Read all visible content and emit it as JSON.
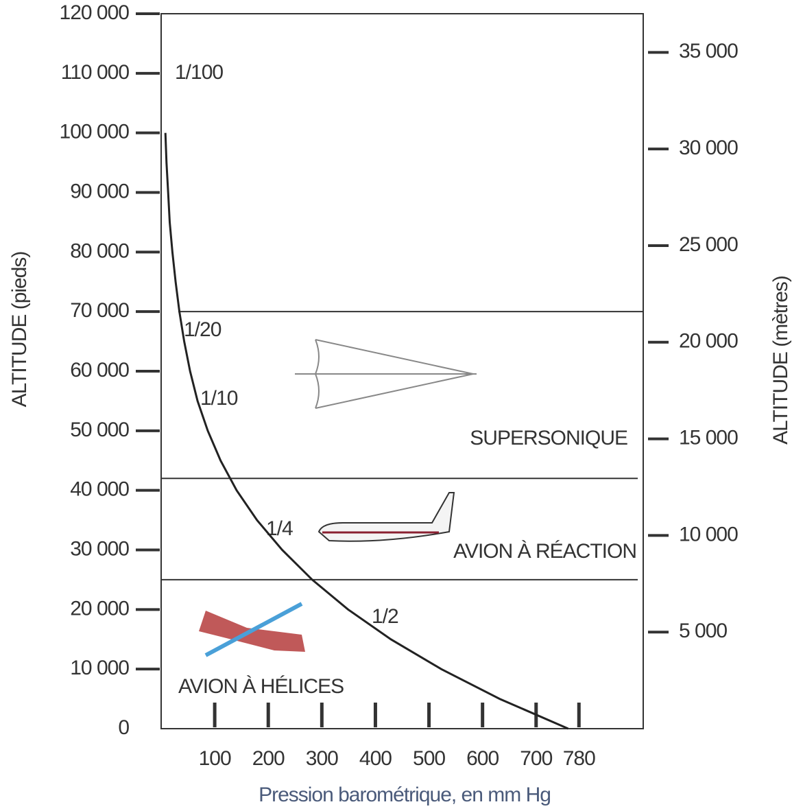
{
  "chart_data": {
    "type": "line",
    "xlabel": "Pression barométrique, en mm Hg",
    "ylabel": "ALTITUDE (pieds)",
    "y2label": "ALTITUDE (mètres)",
    "xlim": [
      0,
      900
    ],
    "xticks": [
      100,
      200,
      300,
      400,
      500,
      600,
      700,
      780
    ],
    "ylim": [
      0,
      120000
    ],
    "yticks": [
      {
        "value": 0,
        "label": "0"
      },
      {
        "value": 10000,
        "label": "10 000"
      },
      {
        "value": 20000,
        "label": "20 000"
      },
      {
        "value": 30000,
        "label": "30 000"
      },
      {
        "value": 40000,
        "label": "40 000"
      },
      {
        "value": 50000,
        "label": "50 000"
      },
      {
        "value": 60000,
        "label": "60 000"
      },
      {
        "value": 70000,
        "label": "70 000"
      },
      {
        "value": 80000,
        "label": "80 000"
      },
      {
        "value": 90000,
        "label": "90 000"
      },
      {
        "value": 100000,
        "label": "100 000"
      },
      {
        "value": 110000,
        "label": "110 000"
      },
      {
        "value": 120000,
        "label": "120 000"
      }
    ],
    "y2lim": [
      0,
      37000
    ],
    "y2ticks": [
      {
        "value": 5000,
        "label": "5 000"
      },
      {
        "value": 10000,
        "label": "10 000"
      },
      {
        "value": 15000,
        "label": "15 000"
      },
      {
        "value": 20000,
        "label": "20 000"
      },
      {
        "value": 25000,
        "label": "25 000"
      },
      {
        "value": 30000,
        "label": "30 000"
      },
      {
        "value": 35000,
        "label": "35 000"
      }
    ],
    "series": [
      {
        "color": "#222222",
        "x": [
          760,
          632,
          523,
          429,
          349,
          282,
          226,
          179,
          141,
          111,
          87,
          68,
          54,
          43,
          34,
          27,
          21,
          16,
          13,
          10,
          8
        ],
        "values": [
          0,
          5000,
          10000,
          15000,
          20000,
          25000,
          30000,
          35000,
          40000,
          45000,
          50000,
          55000,
          60000,
          65000,
          70000,
          75000,
          80000,
          85000,
          90000,
          95000,
          100000
        ]
      }
    ],
    "regions": [
      {
        "name": "SUPERSONIQUE",
        "ymin": 42000,
        "ymax": 70000
      },
      {
        "name": "AVION À RÉACTION",
        "ymin": 25000,
        "ymax": 42000
      },
      {
        "name": "AVION À HÉLICES",
        "ymin": 0,
        "ymax": 25000
      }
    ],
    "annotations": [
      "1/100",
      "1/20",
      "1/10",
      "1/4",
      "1/2"
    ]
  }
}
